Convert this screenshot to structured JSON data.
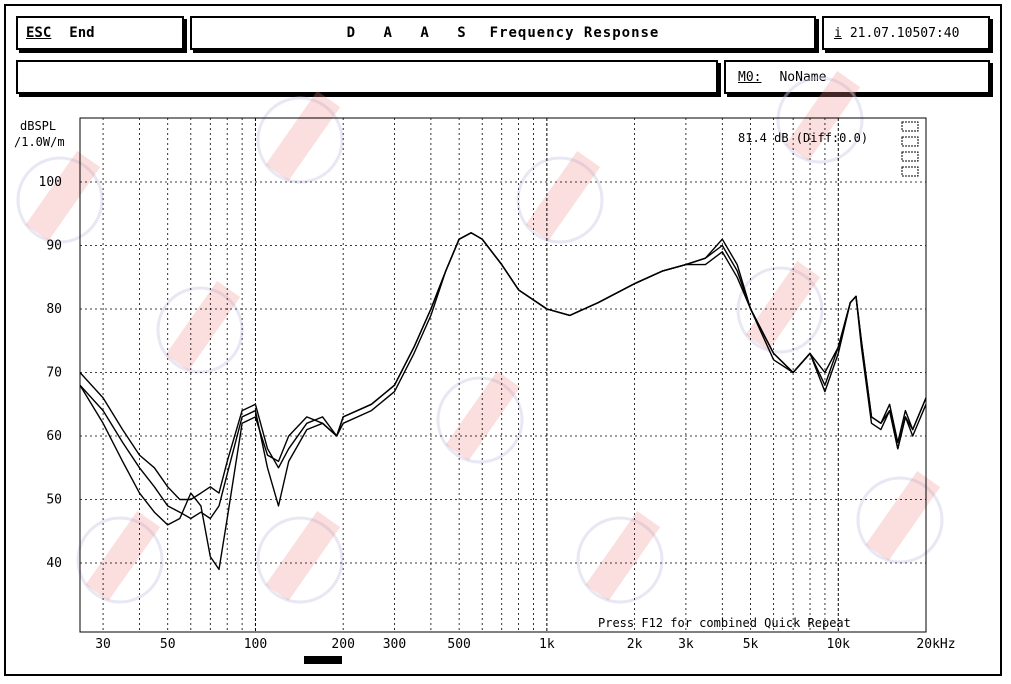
{
  "header": {
    "esc_key": "ESC",
    "esc_label": "End",
    "title_prefix": "D A A S",
    "title": "Frequency Response",
    "info_key": "i",
    "timestamp": "21.07.10507:40",
    "memory_key": "M0:",
    "memory_name": "NoName"
  },
  "overlay": {
    "level_readout": "81.4 dB (Diff:0.0)",
    "footer_hint": "Press F12 for combined Quick Repeat"
  },
  "colors": {
    "line": "#000000",
    "grid": "#000000",
    "background": "#ffffff",
    "watermark": "#f08a8a"
  },
  "chart_data": {
    "type": "line",
    "title": "Frequency Response",
    "ylabel": "dBSPL /1.0W/m",
    "xlabel": "",
    "x_scale": "log",
    "xlim": [
      25,
      20000
    ],
    "ylim": [
      35,
      105
    ],
    "grid": true,
    "y_ticks": [
      100,
      90,
      80,
      70,
      60,
      50,
      40
    ],
    "y_tick_labels": [
      "100",
      "90",
      "80",
      "70",
      "60",
      "50",
      "40"
    ],
    "x_ticks": [
      30,
      50,
      100,
      200,
      300,
      500,
      1000,
      2000,
      3000,
      5000,
      10000,
      20000
    ],
    "x_tick_labels": [
      "30",
      "50",
      "100",
      "200",
      "300",
      "500",
      "1k",
      "2k",
      "3k",
      "5k",
      "10k",
      "20kHz"
    ],
    "series": [
      {
        "x": [
          25,
          30,
          35,
          40,
          45,
          50,
          55,
          60,
          65,
          70,
          75,
          80,
          90,
          100,
          110,
          120,
          130,
          150,
          170,
          190,
          200,
          250,
          300,
          350,
          400,
          450,
          500,
          550,
          600,
          700,
          800,
          1000,
          1200,
          1500,
          2000,
          2500,
          3000,
          3500,
          4000,
          4500,
          5000,
          6000,
          7000,
          8000,
          9000,
          10000,
          11000,
          11500,
          12000,
          13000,
          14000,
          15000,
          16000,
          17000,
          18000,
          20000
        ],
        "y": [
          70,
          66,
          61,
          57,
          55,
          52,
          50,
          50,
          51,
          52,
          51,
          56,
          64,
          65,
          58,
          55,
          58,
          62,
          63,
          60,
          63,
          65,
          68,
          74,
          80,
          86,
          91,
          92,
          91,
          87,
          83,
          80,
          79,
          81,
          84,
          86,
          87,
          88,
          90,
          86,
          80,
          73,
          70,
          73,
          70,
          74,
          81,
          82,
          75,
          63,
          62,
          65,
          59,
          64,
          61,
          66
        ]
      },
      {
        "x": [
          25,
          30,
          35,
          40,
          45,
          50,
          55,
          60,
          65,
          70,
          75,
          80,
          90,
          100,
          110,
          120,
          130,
          150,
          170,
          190,
          200,
          250,
          300,
          350,
          400,
          450,
          500,
          550,
          600,
          700,
          800,
          1000,
          1200,
          1500,
          2000,
          2500,
          3000,
          3500,
          4000,
          4500,
          5000,
          6000,
          7000,
          8000,
          9000,
          10000,
          11000,
          11500,
          12000,
          13000,
          14000,
          15000,
          16000,
          17000,
          18000,
          20000
        ],
        "y": [
          68,
          64,
          59,
          55,
          52,
          49,
          48,
          47,
          48,
          47,
          49,
          54,
          63,
          64,
          55,
          49,
          56,
          61,
          62,
          60,
          62,
          64,
          67,
          73,
          79,
          86,
          91,
          92,
          91,
          87,
          83,
          80,
          79,
          81,
          84,
          86,
          87,
          87,
          89,
          85,
          80,
          73,
          70,
          73,
          68,
          74,
          81,
          82,
          74,
          62,
          61,
          64,
          58,
          63,
          60,
          65
        ]
      },
      {
        "x": [
          25,
          30,
          35,
          40,
          45,
          50,
          55,
          60,
          65,
          70,
          75,
          80,
          90,
          100,
          110,
          120,
          130,
          150,
          170,
          190,
          200,
          250,
          300,
          350,
          400,
          450,
          500,
          550,
          600,
          700,
          800,
          1000,
          1200,
          1500,
          2000,
          2500,
          3000,
          3500,
          4000,
          4500,
          5000,
          6000,
          7000,
          8000,
          9000,
          10000,
          11000,
          11500,
          12000,
          13000,
          14000,
          15000,
          16000,
          17000,
          18000,
          20000
        ],
        "y": [
          68,
          62,
          56,
          51,
          48,
          46,
          47,
          51,
          49,
          41,
          39,
          47,
          62,
          63,
          57,
          56,
          60,
          63,
          62,
          60,
          63,
          65,
          68,
          74,
          80,
          86,
          91,
          92,
          91,
          87,
          83,
          80,
          79,
          81,
          84,
          86,
          87,
          88,
          91,
          87,
          80,
          72,
          70,
          73,
          67,
          73,
          81,
          82,
          75,
          63,
          62,
          64,
          58,
          63,
          61,
          66
        ]
      }
    ]
  }
}
